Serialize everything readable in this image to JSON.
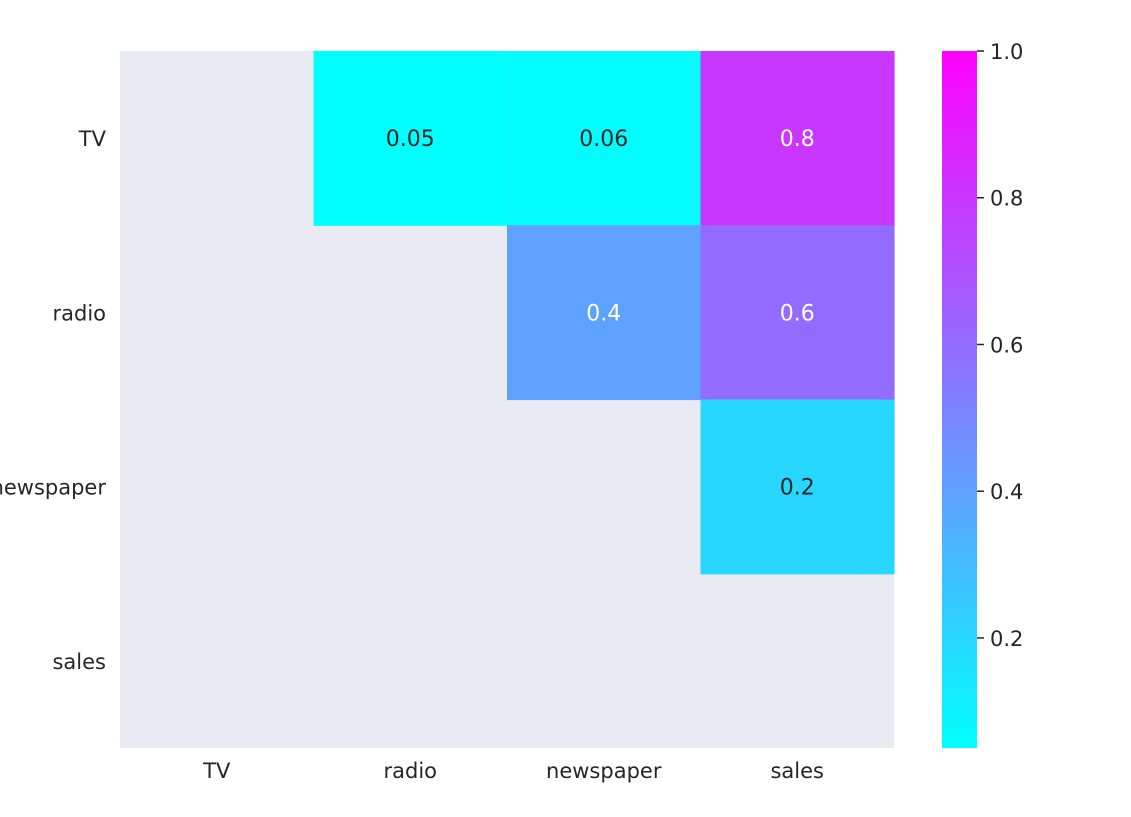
{
  "chart_data": {
    "type": "heatmap",
    "title": "",
    "xlabel": "",
    "ylabel": "",
    "x_categories": [
      "TV",
      "radio",
      "newspaper",
      "sales"
    ],
    "y_categories": [
      "TV",
      "radio",
      "newspaper",
      "sales"
    ],
    "mask": "lower triangle and diagonal",
    "cells": [
      {
        "row": 0,
        "col": 1,
        "value": 0.05,
        "label": "0.05"
      },
      {
        "row": 0,
        "col": 2,
        "value": 0.06,
        "label": "0.06"
      },
      {
        "row": 0,
        "col": 3,
        "value": 0.8,
        "label": "0.8"
      },
      {
        "row": 1,
        "col": 2,
        "value": 0.4,
        "label": "0.4"
      },
      {
        "row": 1,
        "col": 3,
        "value": 0.6,
        "label": "0.6"
      },
      {
        "row": 2,
        "col": 3,
        "value": 0.2,
        "label": "0.2"
      }
    ],
    "colorbar": {
      "colormap": "cool",
      "colors": [
        "#00ffff",
        "#ff00ff"
      ],
      "range": [
        0.05,
        1.0
      ],
      "ticks": [
        0.2,
        0.4,
        0.6,
        0.8,
        1.0
      ],
      "tick_labels": [
        "0.2",
        "0.4",
        "0.6",
        "0.8",
        "1.0"
      ]
    },
    "background_color": "#eaeaf2",
    "grid": false,
    "legend": "colorbar right"
  }
}
